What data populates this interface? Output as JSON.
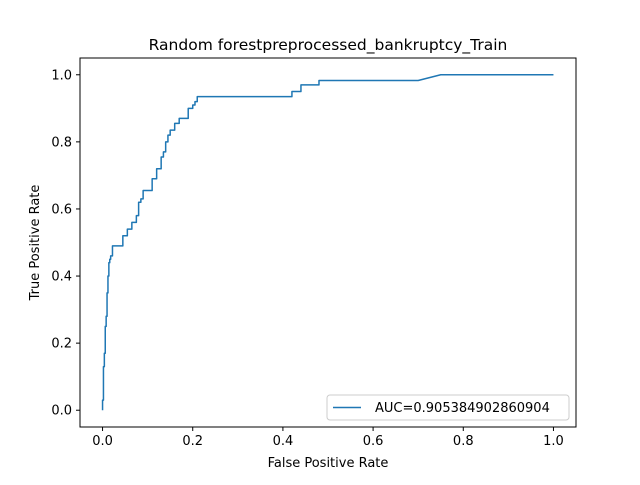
{
  "chart_data": {
    "type": "line",
    "title": "Random forestpreprocessed_bankruptcy_Train",
    "xlabel": "False Positive Rate",
    "ylabel": "True Positive Rate",
    "xlim": [
      -0.05,
      1.05
    ],
    "ylim": [
      -0.05,
      1.05
    ],
    "xticks": [
      "0.0",
      "0.2",
      "0.4",
      "0.6",
      "0.8",
      "1.0"
    ],
    "yticks": [
      "0.0",
      "0.2",
      "0.4",
      "0.6",
      "0.8",
      "1.0"
    ],
    "grid": false,
    "legend_position": "lower-right",
    "series": [
      {
        "name": "AUC=0.905384902860904",
        "color": "#1f77b4",
        "x": [
          0.0,
          0.0,
          0.002,
          0.002,
          0.004,
          0.004,
          0.006,
          0.006,
          0.008,
          0.008,
          0.01,
          0.01,
          0.012,
          0.012,
          0.014,
          0.014,
          0.016,
          0.016,
          0.018,
          0.018,
          0.022,
          0.022,
          0.03,
          0.03,
          0.045,
          0.045,
          0.055,
          0.055,
          0.065,
          0.065,
          0.075,
          0.075,
          0.08,
          0.08,
          0.085,
          0.085,
          0.09,
          0.09,
          0.1,
          0.1,
          0.11,
          0.11,
          0.12,
          0.12,
          0.13,
          0.13,
          0.135,
          0.135,
          0.14,
          0.14,
          0.145,
          0.145,
          0.15,
          0.15,
          0.16,
          0.16,
          0.17,
          0.17,
          0.18,
          0.18,
          0.19,
          0.19,
          0.2,
          0.2,
          0.205,
          0.205,
          0.21,
          0.21,
          0.215,
          0.215,
          0.41,
          0.42,
          0.42,
          0.44,
          0.44,
          0.46,
          0.46,
          0.48,
          0.48,
          0.5,
          0.5,
          0.7,
          0.75,
          0.75,
          1.0
        ],
        "y": [
          0.0,
          0.03,
          0.03,
          0.13,
          0.13,
          0.17,
          0.17,
          0.25,
          0.25,
          0.28,
          0.28,
          0.35,
          0.35,
          0.4,
          0.4,
          0.44,
          0.44,
          0.45,
          0.45,
          0.46,
          0.46,
          0.49,
          0.49,
          0.49,
          0.49,
          0.52,
          0.52,
          0.54,
          0.54,
          0.56,
          0.56,
          0.58,
          0.58,
          0.62,
          0.62,
          0.63,
          0.63,
          0.655,
          0.655,
          0.655,
          0.655,
          0.69,
          0.69,
          0.72,
          0.72,
          0.755,
          0.755,
          0.77,
          0.77,
          0.8,
          0.8,
          0.82,
          0.82,
          0.835,
          0.835,
          0.855,
          0.855,
          0.87,
          0.87,
          0.87,
          0.87,
          0.9,
          0.9,
          0.91,
          0.91,
          0.92,
          0.92,
          0.935,
          0.935,
          0.935,
          0.935,
          0.935,
          0.95,
          0.95,
          0.97,
          0.97,
          0.97,
          0.97,
          0.983,
          0.983,
          0.983,
          0.983,
          1.0,
          1.0,
          1.0
        ]
      }
    ]
  }
}
